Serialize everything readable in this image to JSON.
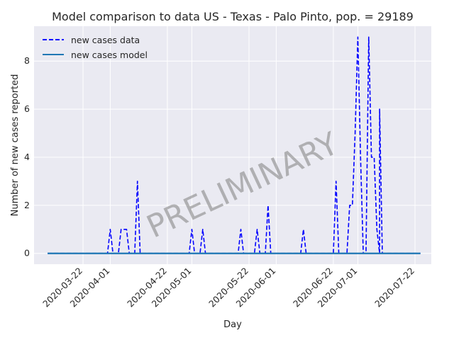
{
  "chart_data": {
    "type": "line",
    "title": "Model comparison to data US - Texas - Palo Pinto, pop. = 29189",
    "xlabel": "Day",
    "ylabel": "Number of new cases reported",
    "watermark": "PRELIMINARY",
    "x_start": "2020-03-09",
    "x_end": "2020-07-24",
    "xlim": [
      "2020-03-04",
      "2020-07-28"
    ],
    "ylim": [
      -0.45,
      9.45
    ],
    "x_ticks": [
      "2020-03-22",
      "2020-04-01",
      "2020-04-22",
      "2020-05-01",
      "2020-05-22",
      "2020-06-01",
      "2020-06-22",
      "2020-07-01",
      "2020-07-22"
    ],
    "y_ticks": [
      0,
      2,
      4,
      6,
      8
    ],
    "grid": true,
    "legend_position": "top-left",
    "colors": {
      "data": "#0000ff",
      "model": "#1f77b4",
      "background": "#eaeaf2",
      "grid": "#ffffff"
    },
    "series": [
      {
        "name": "new cases data",
        "style": "dashed",
        "points": [
          [
            "2020-03-09",
            0
          ],
          [
            "2020-03-31",
            0
          ],
          [
            "2020-04-01",
            1
          ],
          [
            "2020-04-02",
            0
          ],
          [
            "2020-04-04",
            0
          ],
          [
            "2020-04-05",
            1
          ],
          [
            "2020-04-07",
            1
          ],
          [
            "2020-04-08",
            0
          ],
          [
            "2020-04-10",
            0
          ],
          [
            "2020-04-11",
            3
          ],
          [
            "2020-04-12",
            0
          ],
          [
            "2020-04-30",
            0
          ],
          [
            "2020-05-01",
            1
          ],
          [
            "2020-05-02",
            0
          ],
          [
            "2020-05-04",
            0
          ],
          [
            "2020-05-05",
            1
          ],
          [
            "2020-05-06",
            0
          ],
          [
            "2020-05-18",
            0
          ],
          [
            "2020-05-19",
            1
          ],
          [
            "2020-05-20",
            0
          ],
          [
            "2020-05-24",
            0
          ],
          [
            "2020-05-25",
            1
          ],
          [
            "2020-05-26",
            0
          ],
          [
            "2020-05-28",
            0
          ],
          [
            "2020-05-29",
            2
          ],
          [
            "2020-05-30",
            0
          ],
          [
            "2020-06-10",
            0
          ],
          [
            "2020-06-11",
            1
          ],
          [
            "2020-06-12",
            0
          ],
          [
            "2020-06-22",
            0
          ],
          [
            "2020-06-23",
            3
          ],
          [
            "2020-06-24",
            0
          ],
          [
            "2020-06-27",
            0
          ],
          [
            "2020-06-28",
            2
          ],
          [
            "2020-06-29",
            2
          ],
          [
            "2020-06-30",
            5
          ],
          [
            "2020-07-01",
            9
          ],
          [
            "2020-07-02",
            4
          ],
          [
            "2020-07-03",
            0
          ],
          [
            "2020-07-04",
            0
          ],
          [
            "2020-07-05",
            9
          ],
          [
            "2020-07-06",
            4
          ],
          [
            "2020-07-07",
            4
          ],
          [
            "2020-07-08",
            1
          ],
          [
            "2020-07-09",
            0
          ],
          [
            "2020-07-09",
            6
          ],
          [
            "2020-07-10",
            0
          ],
          [
            "2020-07-24",
            0
          ]
        ]
      },
      {
        "name": "new cases model",
        "style": "solid",
        "points": [
          [
            "2020-03-09",
            0
          ],
          [
            "2020-07-24",
            0
          ]
        ]
      }
    ]
  }
}
